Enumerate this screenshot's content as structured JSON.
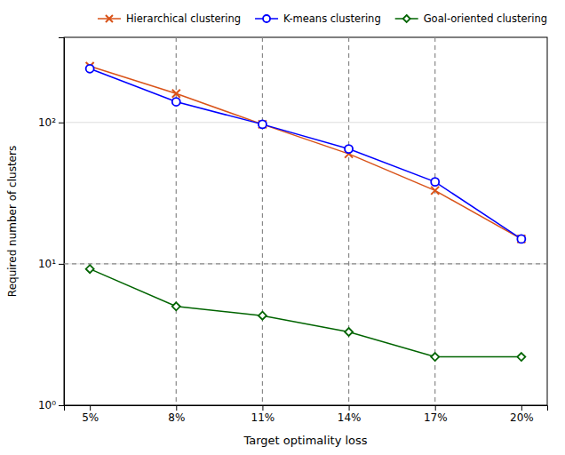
{
  "chart_data": {
    "type": "line",
    "categories": [
      "5%",
      "8%",
      "11%",
      "14%",
      "17%",
      "20%"
    ],
    "series": [
      {
        "name": "Hierarchical clustering",
        "color": "#d95319",
        "marker": "x",
        "values": [
          250,
          160,
          97,
          60,
          33,
          15
        ]
      },
      {
        "name": "K-means clustering",
        "color": "#0000ff",
        "marker": "circle",
        "values": [
          240,
          140,
          97,
          65,
          38,
          15
        ]
      },
      {
        "name": "Goal-oriented clustering",
        "color": "#006400",
        "marker": "diamond",
        "values": [
          9.2,
          5.0,
          4.3,
          3.3,
          2.2,
          2.2
        ]
      }
    ],
    "xlabel": "Target optimality loss",
    "ylabel": "Required number of clusters",
    "log": "y",
    "ylim": [
      1,
      400
    ],
    "yticks": [
      {
        "value": 1,
        "label": "10⁰"
      },
      {
        "value": 10,
        "label": "10¹"
      },
      {
        "value": 100,
        "label": "10²"
      }
    ],
    "hlines": [
      10
    ],
    "vlines": [
      "8%",
      "11%",
      "14%",
      "17%"
    ],
    "grid": true,
    "legend": "upper right"
  }
}
